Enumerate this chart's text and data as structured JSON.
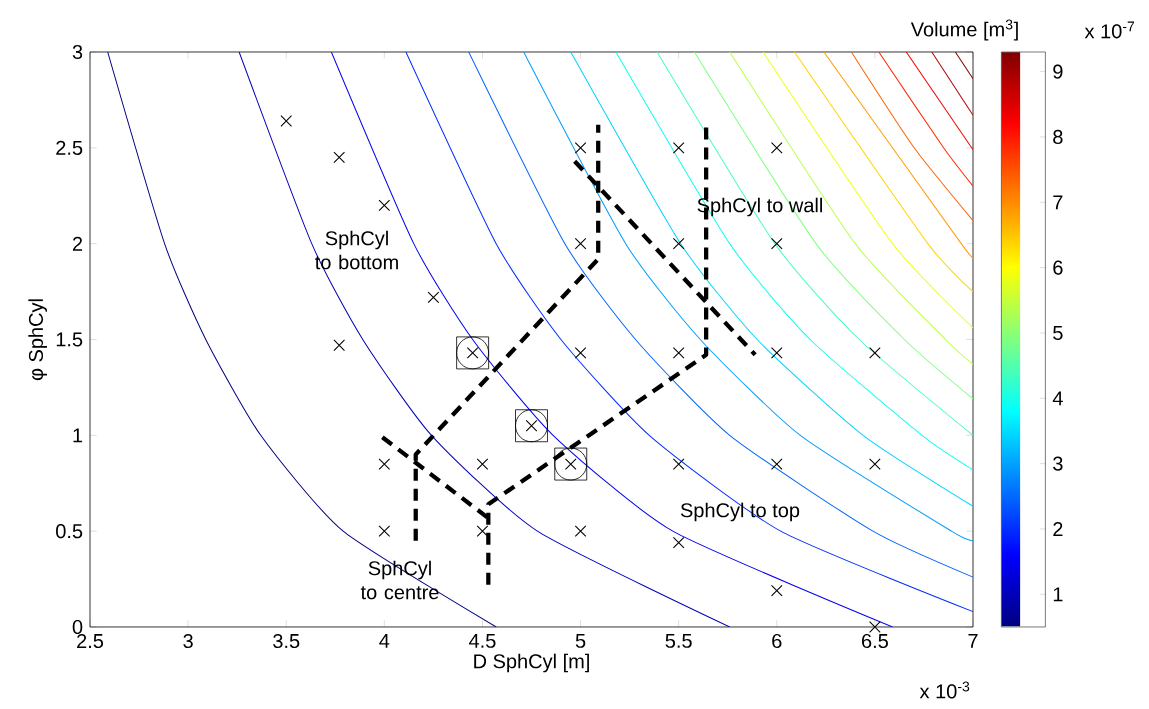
{
  "chart_data": {
    "type": "line",
    "xlabel": "D SphCyl [m]",
    "ylabel": "φ SphCyl",
    "clabel": "Volume [m$^{3}$]",
    "xlim": [
      2.5,
      7
    ],
    "ylim": [
      0,
      3
    ],
    "xticks": [
      2.5,
      3,
      3.5,
      4,
      4.5,
      5,
      5.5,
      6,
      6.5,
      7
    ],
    "yticks": [
      0,
      0.5,
      1,
      1.5,
      2,
      2.5,
      3
    ],
    "clim": [
      0.5,
      9.3
    ],
    "cticks": [
      1,
      2,
      3,
      4,
      5,
      6,
      7,
      8,
      9
    ],
    "series": [
      {
        "color": "#000080",
        "marker": "none",
        "line_style": "solid",
        "x": [
          2.59,
          2.88,
          3.09,
          3.37,
          3.79,
          4.57
        ],
        "values": [
          3,
          2,
          1.5,
          1,
          0.5,
          0
        ]
      },
      {
        "color": "#0000b8",
        "marker": "none",
        "line_style": "solid",
        "x": [
          3.26,
          3.63,
          3.89,
          4.24,
          4.78,
          5.76
        ],
        "values": [
          3,
          2,
          1.5,
          1,
          0.5,
          0
        ]
      },
      {
        "color": "#0000f1",
        "marker": "none",
        "line_style": "solid",
        "x": [
          3.73,
          4.15,
          4.45,
          4.86,
          5.47,
          6.59
        ],
        "values": [
          3,
          2,
          1.5,
          1,
          0.5,
          0
        ]
      },
      {
        "color": "#002bff",
        "marker": "none",
        "line_style": "solid",
        "x": [
          4.11,
          4.57,
          4.9,
          5.35,
          6.02,
          7.0
        ],
        "values": [
          3,
          2,
          1.5,
          1,
          0.5,
          0.08
        ]
      },
      {
        "color": "#0063ff",
        "marker": "none",
        "line_style": "solid",
        "x": [
          4.43,
          4.92,
          5.28,
          5.76,
          6.49,
          7.0
        ],
        "values": [
          3,
          2,
          1.5,
          1,
          0.5,
          0.26
        ]
      },
      {
        "color": "#009cff",
        "marker": "none",
        "line_style": "solid",
        "x": [
          4.71,
          5.23,
          5.61,
          6.12,
          6.89,
          7.0
        ],
        "values": [
          3,
          2,
          1.5,
          1,
          0.5,
          0.45
        ]
      },
      {
        "color": "#00d4ff",
        "marker": "none",
        "line_style": "solid",
        "x": [
          4.95,
          5.51,
          5.9,
          6.44,
          7.0
        ],
        "values": [
          3,
          2,
          1.5,
          1,
          0.63
        ]
      },
      {
        "color": "#0efff1",
        "marker": "none",
        "line_style": "solid",
        "x": [
          5.18,
          5.76,
          6.17,
          6.74,
          7.0
        ],
        "values": [
          3,
          2,
          1.5,
          1,
          0.82
        ]
      },
      {
        "color": "#47ffb8",
        "marker": "none",
        "line_style": "solid",
        "x": [
          5.39,
          5.99,
          6.42,
          7.0
        ],
        "values": [
          3,
          2,
          1.5,
          1.0
        ]
      },
      {
        "color": "#80ff80",
        "marker": "none",
        "line_style": "solid",
        "x": [
          5.58,
          6.2,
          6.65,
          7.0
        ],
        "values": [
          3,
          2,
          1.5,
          1.19
        ]
      },
      {
        "color": "#b8ff47",
        "marker": "none",
        "line_style": "solid",
        "x": [
          5.76,
          6.4,
          6.86,
          7.0
        ],
        "values": [
          3,
          2,
          1.5,
          1.37
        ]
      },
      {
        "color": "#f1ff0e",
        "marker": "none",
        "line_style": "solid",
        "x": [
          5.93,
          6.59,
          7.0
        ],
        "values": [
          3,
          2,
          1.56
        ]
      },
      {
        "color": "#ffd400",
        "marker": "none",
        "line_style": "solid",
        "x": [
          6.09,
          6.77,
          7.0
        ],
        "values": [
          3,
          2,
          1.75
        ]
      },
      {
        "color": "#ff9c00",
        "marker": "none",
        "line_style": "solid",
        "x": [
          6.24,
          6.94,
          7.0
        ],
        "values": [
          3,
          2,
          1.93
        ]
      },
      {
        "color": "#ff6300",
        "marker": "none",
        "line_style": "solid",
        "x": [
          6.38,
          6.7,
          7.0
        ],
        "values": [
          3,
          2.5,
          2.12
        ]
      },
      {
        "color": "#ff2b00",
        "marker": "none",
        "line_style": "solid",
        "x": [
          6.52,
          6.85,
          7.0
        ],
        "values": [
          3,
          2.5,
          2.3
        ]
      },
      {
        "color": "#f10000",
        "marker": "none",
        "line_style": "solid",
        "x": [
          6.66,
          7.0
        ],
        "values": [
          3,
          2.49
        ]
      },
      {
        "color": "#b80000",
        "marker": "none",
        "line_style": "solid",
        "x": [
          6.79,
          7.0
        ],
        "values": [
          3,
          2.67
        ]
      },
      {
        "color": "#800000",
        "marker": "none",
        "line_style": "solid",
        "x": [
          6.91,
          7.0
        ],
        "values": [
          3,
          2.86
        ]
      },
      {
        "color": "#000000",
        "marker": "none",
        "line_style": "dashed",
        "x": [
          4.16,
          4.16,
          5.09,
          5.09
        ],
        "values": [
          0.45,
          0.9,
          1.92,
          2.62
        ]
      },
      {
        "color": "#000000",
        "marker": "none",
        "line_style": "dashed",
        "x": [
          4.53,
          4.53,
          5.64,
          5.64
        ],
        "values": [
          0.22,
          0.64,
          1.42,
          2.62
        ]
      },
      {
        "color": "#000000",
        "marker": "none",
        "line_style": "dashed",
        "x": [
          3.99,
          4.54
        ],
        "values": [
          0.99,
          0.56
        ]
      },
      {
        "color": "#000000",
        "marker": "none",
        "line_style": "dashed",
        "x": [
          4.97,
          5.89
        ],
        "values": [
          2.43,
          1.42
        ]
      },
      {
        "type": "scatter",
        "color": "#000000",
        "marker": "cross",
        "x": [
          3.5,
          3.77,
          4,
          4.25,
          3.77,
          4.45,
          5,
          5,
          5,
          5.5,
          5.5,
          5.5,
          6,
          6,
          6,
          6.5,
          4.75,
          4,
          4.5,
          4.95,
          5.5,
          6,
          6.5,
          4,
          4.5,
          5,
          5.5,
          6,
          6.5
        ],
        "values": [
          2.64,
          2.45,
          2.2,
          1.72,
          1.47,
          1.43,
          2.5,
          2.0,
          1.43,
          2.5,
          2.0,
          1.43,
          2.5,
          2.0,
          1.43,
          1.43,
          1.05,
          0.85,
          0.85,
          0.85,
          0.85,
          0.85,
          0.85,
          0.5,
          0.5,
          0.5,
          0.44,
          0.19,
          0.0
        ]
      },
      {
        "type": "scatter",
        "color": "#000000",
        "marker": "circle",
        "x": [
          4.45,
          4.75,
          4.95
        ],
        "values": [
          1.43,
          1.05,
          0.85
        ]
      },
      {
        "type": "scatter",
        "color": "#000000",
        "marker": "square",
        "x": [
          4.45,
          4.75,
          4.95
        ],
        "values": [
          1.43,
          1.05,
          0.85
        ]
      }
    ],
    "annotations": [
      "SphCyl to bottom",
      "SphCyl to wall",
      "SphCyl to top",
      "SphCyl to centre",
      "x 10$^{-3}$",
      "x 10$^{-7}$"
    ]
  }
}
